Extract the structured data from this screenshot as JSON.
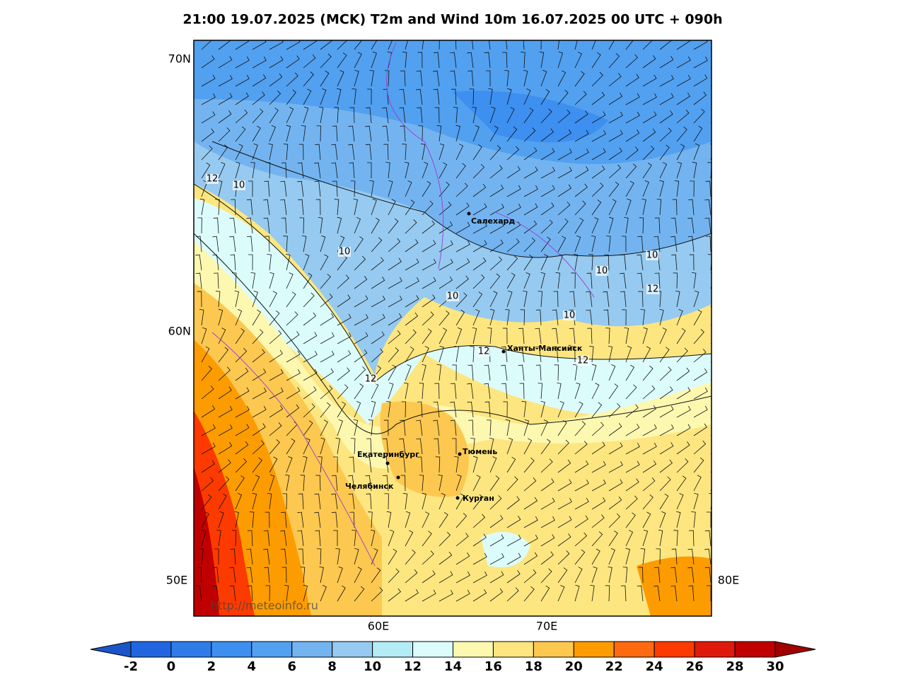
{
  "title": "21:00 19.07.2025 (MCK) T2m and Wind 10m 16.07.2025 00 UTC + 090h",
  "lat_labels": [
    "70N",
    "60N"
  ],
  "lon_labels": [
    "50E",
    "60E",
    "70E",
    "80E"
  ],
  "cities": [
    "Салехард",
    "Ханты-Мансийск",
    "Екатеринбург",
    "Тюмень",
    "Челябинск",
    "Курган"
  ],
  "contour_labels": [
    "12",
    "10",
    "10",
    "10",
    "10",
    "10",
    "12",
    "10",
    "12",
    "12",
    "12"
  ],
  "watermark": "http://meteoinfo.ru",
  "colorbar": {
    "lim": [
      -2,
      30
    ],
    "ticks": [
      -2,
      0,
      2,
      4,
      6,
      8,
      10,
      12,
      14,
      16,
      18,
      20,
      22,
      24,
      26,
      28,
      30
    ],
    "under_color": "#1b55c8",
    "over_color": "#a00000",
    "colors": [
      "#2166e0",
      "#2f7ce8",
      "#3d8ff0",
      "#52a0f0",
      "#73b4f0",
      "#96caf0",
      "#b4ecf6",
      "#dcfcfc",
      "#fdf8b0",
      "#fde680",
      "#fdc850",
      "#fd9c00",
      "#fd6a10",
      "#fd3a00",
      "#e01a0a",
      "#c00000"
    ]
  }
}
